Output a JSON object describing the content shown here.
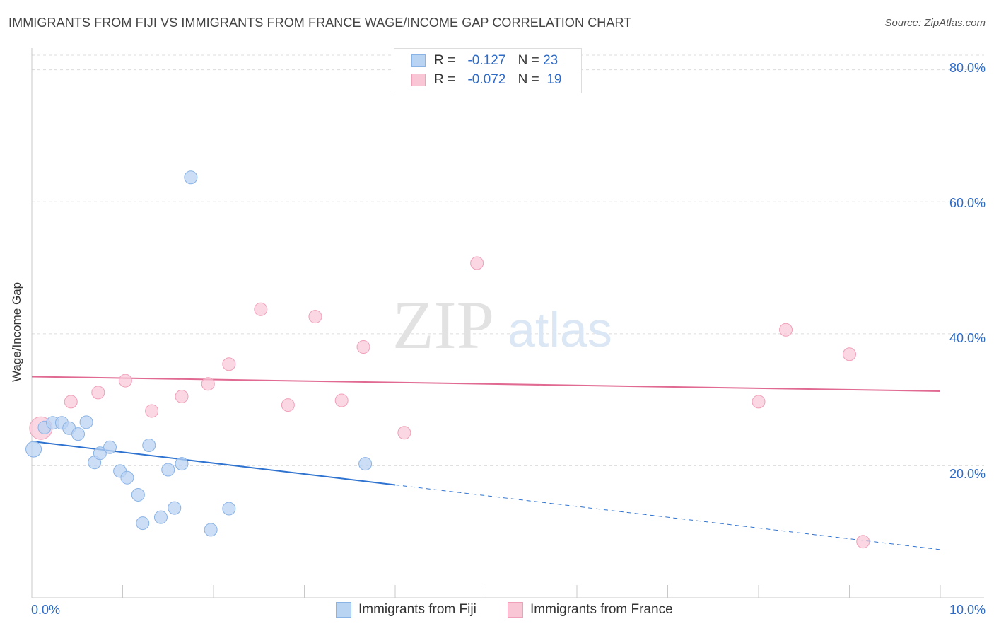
{
  "header": {
    "title": "IMMIGRANTS FROM FIJI VS IMMIGRANTS FROM FRANCE WAGE/INCOME GAP CORRELATION CHART",
    "source": "Source: ZipAtlas.com"
  },
  "watermark": {
    "zip": "ZIP",
    "atlas": "atlas"
  },
  "legend_top": {
    "rows": [
      {
        "r_label": "R =",
        "r_value": "-0.127",
        "n_label": "N =",
        "n_value": "23"
      },
      {
        "r_label": "R =",
        "r_value": "-0.072",
        "n_label": "N =",
        "n_value": "19"
      }
    ]
  },
  "colors": {
    "fiji_fill": "#b9d3f3",
    "fiji_stroke": "#8ab3e6",
    "fiji_line": "#2f73d0",
    "france_fill": "#f8c6d5",
    "france_stroke": "#f0a0b8",
    "france_line": "#e06a92",
    "grid": "#dcdcdc",
    "tick_text": "#2e6bc6"
  },
  "chart_data": {
    "type": "scatter",
    "title": "IMMIGRANTS FROM FIJI VS IMMIGRANTS FROM FRANCE WAGE/INCOME GAP CORRELATION CHART",
    "xlabel": "",
    "ylabel": "Wage/Income Gap",
    "xlim": [
      0,
      10
    ],
    "ylim": [
      0,
      82
    ],
    "x_tick_labels": [
      "0.0%",
      "10.0%"
    ],
    "y_ticks": [
      20,
      40,
      60,
      80
    ],
    "y_tick_labels": [
      "20.0%",
      "40.0%",
      "60.0%",
      "80.0%"
    ],
    "series": [
      {
        "name": "Immigrants from Fiji",
        "R": -0.127,
        "N": 23,
        "points": [
          [
            0.02,
            22.5
          ],
          [
            0.14,
            25.8
          ],
          [
            0.23,
            26.5
          ],
          [
            0.33,
            26.5
          ],
          [
            0.41,
            25.7
          ],
          [
            0.51,
            24.8
          ],
          [
            0.6,
            26.6
          ],
          [
            0.69,
            20.5
          ],
          [
            0.75,
            21.9
          ],
          [
            0.86,
            22.8
          ],
          [
            0.97,
            19.2
          ],
          [
            1.05,
            18.2
          ],
          [
            1.17,
            15.6
          ],
          [
            1.22,
            11.3
          ],
          [
            1.29,
            23.1
          ],
          [
            1.42,
            12.2
          ],
          [
            1.5,
            19.4
          ],
          [
            1.57,
            13.6
          ],
          [
            1.65,
            20.3
          ],
          [
            1.75,
            63.7
          ],
          [
            1.97,
            10.3
          ],
          [
            2.17,
            13.5
          ],
          [
            3.67,
            20.3
          ]
        ],
        "trend": {
          "x0": 0,
          "y0": 23.7,
          "x1": 4.0,
          "y1": 17.1,
          "dashed_to_x": 10,
          "dashed_to_y": 7.3
        }
      },
      {
        "name": "Immigrants from France",
        "R": -0.072,
        "N": 19,
        "points": [
          [
            0.1,
            25.7
          ],
          [
            0.43,
            29.7
          ],
          [
            0.73,
            31.1
          ],
          [
            1.03,
            32.9
          ],
          [
            1.32,
            28.3
          ],
          [
            1.65,
            30.5
          ],
          [
            1.94,
            32.4
          ],
          [
            2.17,
            35.4
          ],
          [
            2.52,
            43.7
          ],
          [
            2.82,
            29.2
          ],
          [
            3.12,
            42.6
          ],
          [
            3.41,
            29.9
          ],
          [
            3.65,
            38.0
          ],
          [
            4.1,
            25.0
          ],
          [
            4.9,
            50.7
          ],
          [
            8.0,
            29.7
          ],
          [
            8.3,
            40.6
          ],
          [
            9.0,
            36.9
          ],
          [
            9.15,
            8.5
          ]
        ],
        "trend": {
          "x0": 0,
          "y0": 33.5,
          "x1": 10,
          "y1": 31.3
        }
      }
    ]
  },
  "bottom_legend": {
    "fiji": "Immigrants from Fiji",
    "france": "Immigrants from France"
  }
}
